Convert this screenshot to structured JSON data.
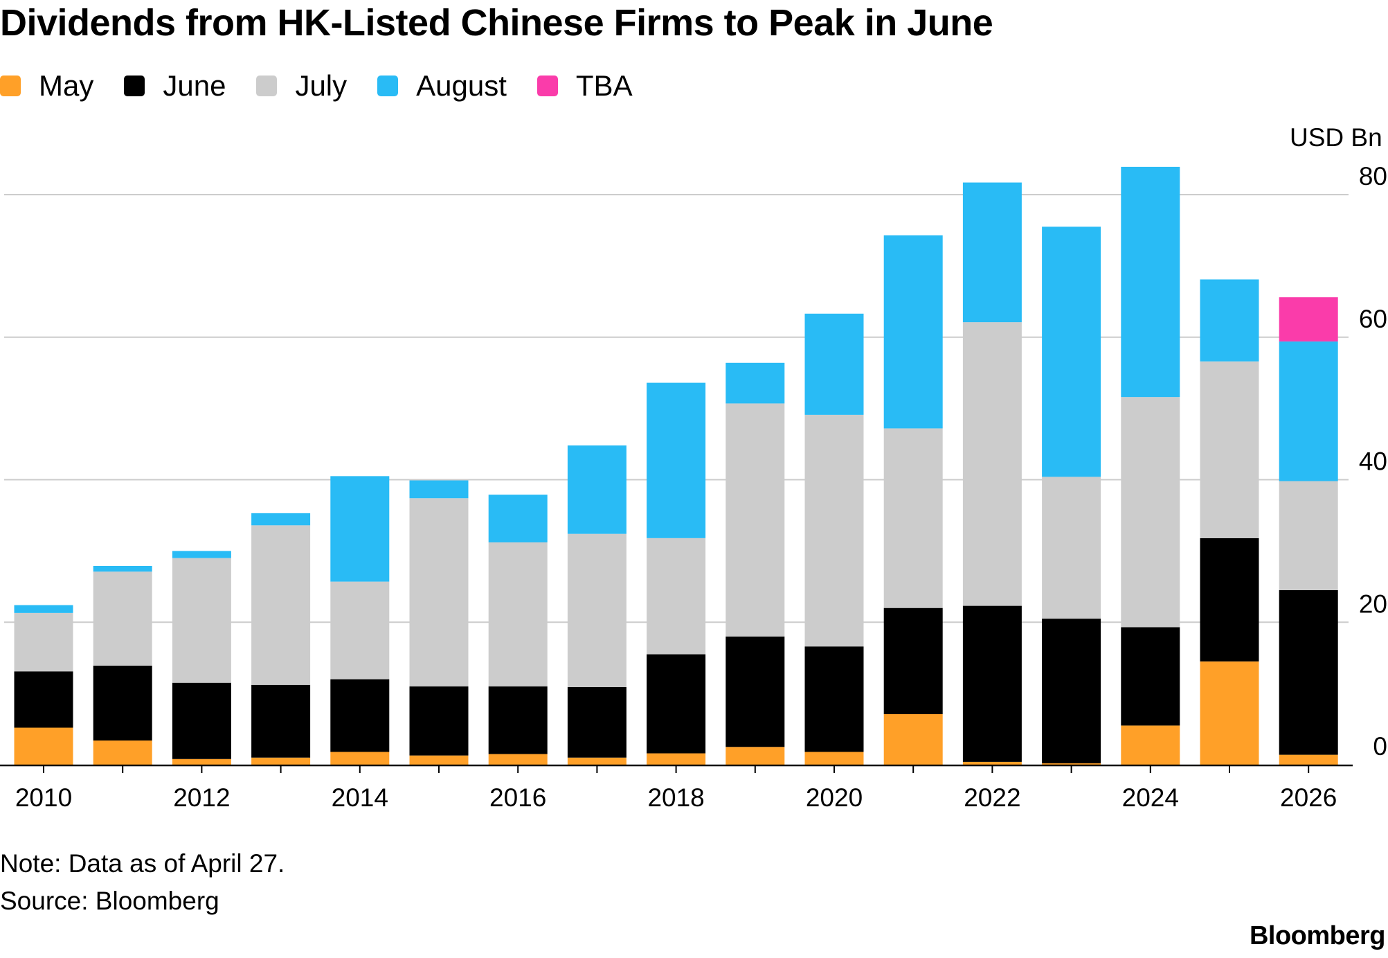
{
  "chart_data": {
    "type": "bar",
    "stacked": true,
    "title": "Dividends from HK-Listed Chinese Firms to Peak in June",
    "ylabel": "USD Bn",
    "xlabel": "",
    "ylim": [
      0,
      80
    ],
    "yticks": [
      0,
      20,
      40,
      60,
      80
    ],
    "xticks": [
      "2010",
      "2012",
      "2014",
      "2016",
      "2018",
      "2020",
      "2022",
      "2024",
      "2026"
    ],
    "grid": true,
    "legend_position": "top-left",
    "categories": [
      "2010",
      "2011",
      "2012",
      "2013",
      "2014",
      "2015",
      "2016",
      "2017",
      "2018",
      "2019",
      "2020",
      "2021",
      "2022",
      "2023",
      "2024",
      "2025",
      "2026"
    ],
    "series": [
      {
        "name": "May",
        "color": "#ffa028",
        "values": [
          5.2,
          3.4,
          0.8,
          1.0,
          1.8,
          1.3,
          1.5,
          1.0,
          1.6,
          2.5,
          1.8,
          7.1,
          0.4,
          0.2,
          5.5,
          14.5,
          1.4
        ]
      },
      {
        "name": "June",
        "color": "#000000",
        "values": [
          7.9,
          10.5,
          10.7,
          10.2,
          10.2,
          9.7,
          9.5,
          9.9,
          13.9,
          15.5,
          14.8,
          14.9,
          21.9,
          20.3,
          13.8,
          17.3,
          23.1
        ]
      },
      {
        "name": "July",
        "color": "#cccccc",
        "values": [
          8.2,
          13.2,
          17.5,
          22.4,
          13.7,
          26.4,
          20.2,
          21.5,
          16.3,
          32.7,
          32.5,
          25.2,
          39.8,
          19.9,
          32.3,
          24.8,
          15.3
        ]
      },
      {
        "name": "August",
        "color": "#29bbf5",
        "values": [
          1.1,
          0.8,
          1.0,
          1.7,
          14.8,
          2.5,
          6.7,
          12.4,
          21.8,
          5.7,
          14.2,
          27.1,
          19.6,
          35.1,
          32.3,
          11.5,
          19.6
        ]
      },
      {
        "name": "TBA",
        "color": "#fa3caa",
        "values": [
          0,
          0,
          0,
          0,
          0,
          0,
          0,
          0,
          0,
          0,
          0,
          0,
          0,
          0,
          0,
          0,
          6.2
        ]
      }
    ]
  },
  "note": "Note: Data as of April 27.",
  "source": "Source: Bloomberg",
  "brand": "Bloomberg"
}
